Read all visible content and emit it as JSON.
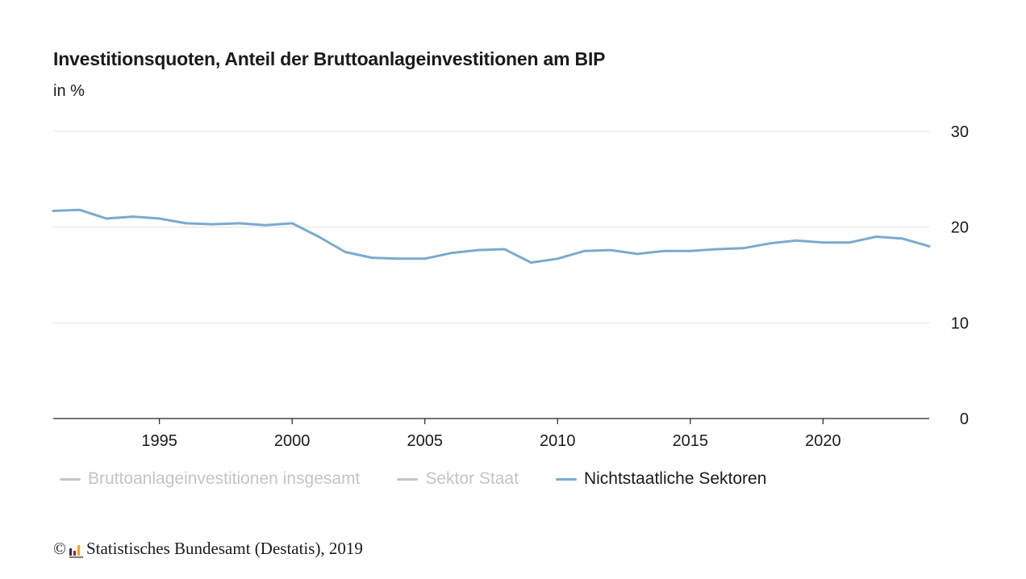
{
  "chart_data": {
    "type": "line",
    "title": "Investitionsquoten, Anteil der Bruttoanlageinvestitionen am BIP",
    "subtitle": "in %",
    "x": [
      1991,
      1992,
      1993,
      1994,
      1995,
      1996,
      1997,
      1998,
      1999,
      2000,
      2001,
      2002,
      2003,
      2004,
      2005,
      2006,
      2007,
      2008,
      2009,
      2010,
      2011,
      2012,
      2013,
      2014,
      2015,
      2016,
      2017,
      2018,
      2019,
      2020,
      2021,
      2022,
      2023,
      2024
    ],
    "series": [
      {
        "name": "Nichtstaatliche Sektoren",
        "color": "#7aaad0",
        "values": [
          21.7,
          21.8,
          20.9,
          21.1,
          20.9,
          20.4,
          20.3,
          20.4,
          20.2,
          20.4,
          19.0,
          17.4,
          16.8,
          16.7,
          16.7,
          17.3,
          17.6,
          17.7,
          16.3,
          16.7,
          17.5,
          17.6,
          17.2,
          17.5,
          17.5,
          17.7,
          17.8,
          18.3,
          18.6,
          18.4,
          18.4,
          19.0,
          18.8,
          18.0
        ]
      }
    ],
    "xlim": [
      1991,
      2024
    ],
    "ylim": [
      0,
      30
    ],
    "x_ticks": [
      1995,
      2000,
      2005,
      2010,
      2015,
      2020
    ],
    "y_ticks": [
      0,
      10,
      20,
      30
    ],
    "y_axis_side": "right",
    "grid": "horizontal",
    "legend": [
      {
        "label": "Bruttoanlageinvestitionen insgesamt",
        "active": false,
        "color": "#c4c4c4"
      },
      {
        "label": "Sektor Staat",
        "active": false,
        "color": "#c4c4c4"
      },
      {
        "label": "Nichtstaatliche Sektoren",
        "active": true,
        "color": "#7aaad0"
      }
    ],
    "legend_position": "bottom-left"
  },
  "footer": {
    "copyright": "©",
    "source": "Statistisches Bundesamt (Destatis), 2019",
    "logo_colors": [
      "#333333",
      "#d0021b",
      "#f5a800"
    ]
  }
}
